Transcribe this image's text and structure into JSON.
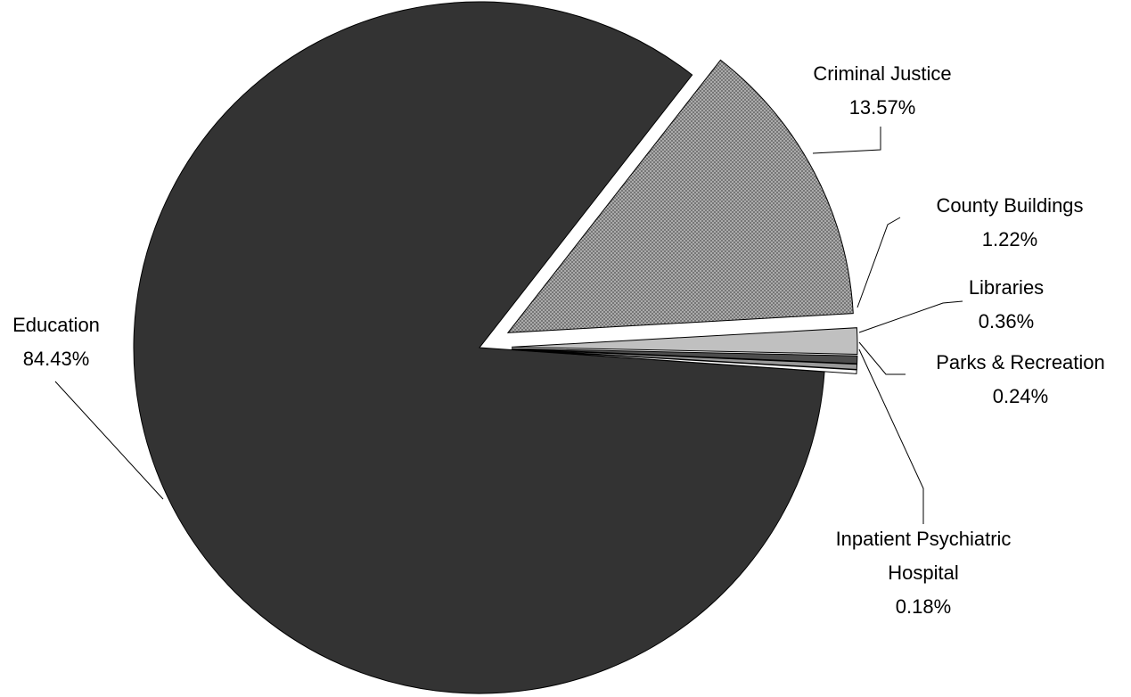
{
  "chart_data": {
    "type": "pie",
    "title": "",
    "legend": "none",
    "slices": [
      {
        "label": "Education",
        "value": 84.43,
        "value_label": "84.43%",
        "color": "#333333",
        "pattern": "solid",
        "exploded": false
      },
      {
        "label": "Criminal Justice",
        "value": 13.57,
        "value_label": "13.57%",
        "color": "#b0b0b0",
        "pattern": "crosshatch",
        "exploded": true
      },
      {
        "label": "County Buildings",
        "value": 1.22,
        "value_label": "1.22%",
        "color": "#c0c0c0",
        "pattern": "solid",
        "exploded": true
      },
      {
        "label": "Libraries",
        "value": 0.36,
        "value_label": "0.36%",
        "color": "#4d4d4d",
        "pattern": "solid",
        "exploded": true
      },
      {
        "label": "Parks & Recreation",
        "value": 0.24,
        "value_label": "0.24%",
        "color": "#999999",
        "pattern": "solid",
        "exploded": true
      },
      {
        "label": "Inpatient Psychiatric Hospital",
        "label_lines": [
          "Inpatient Psychiatric",
          "Hospital"
        ],
        "value": 0.18,
        "value_label": "0.18%",
        "color": "#ffffff",
        "pattern": "solid",
        "exploded": true
      }
    ]
  }
}
